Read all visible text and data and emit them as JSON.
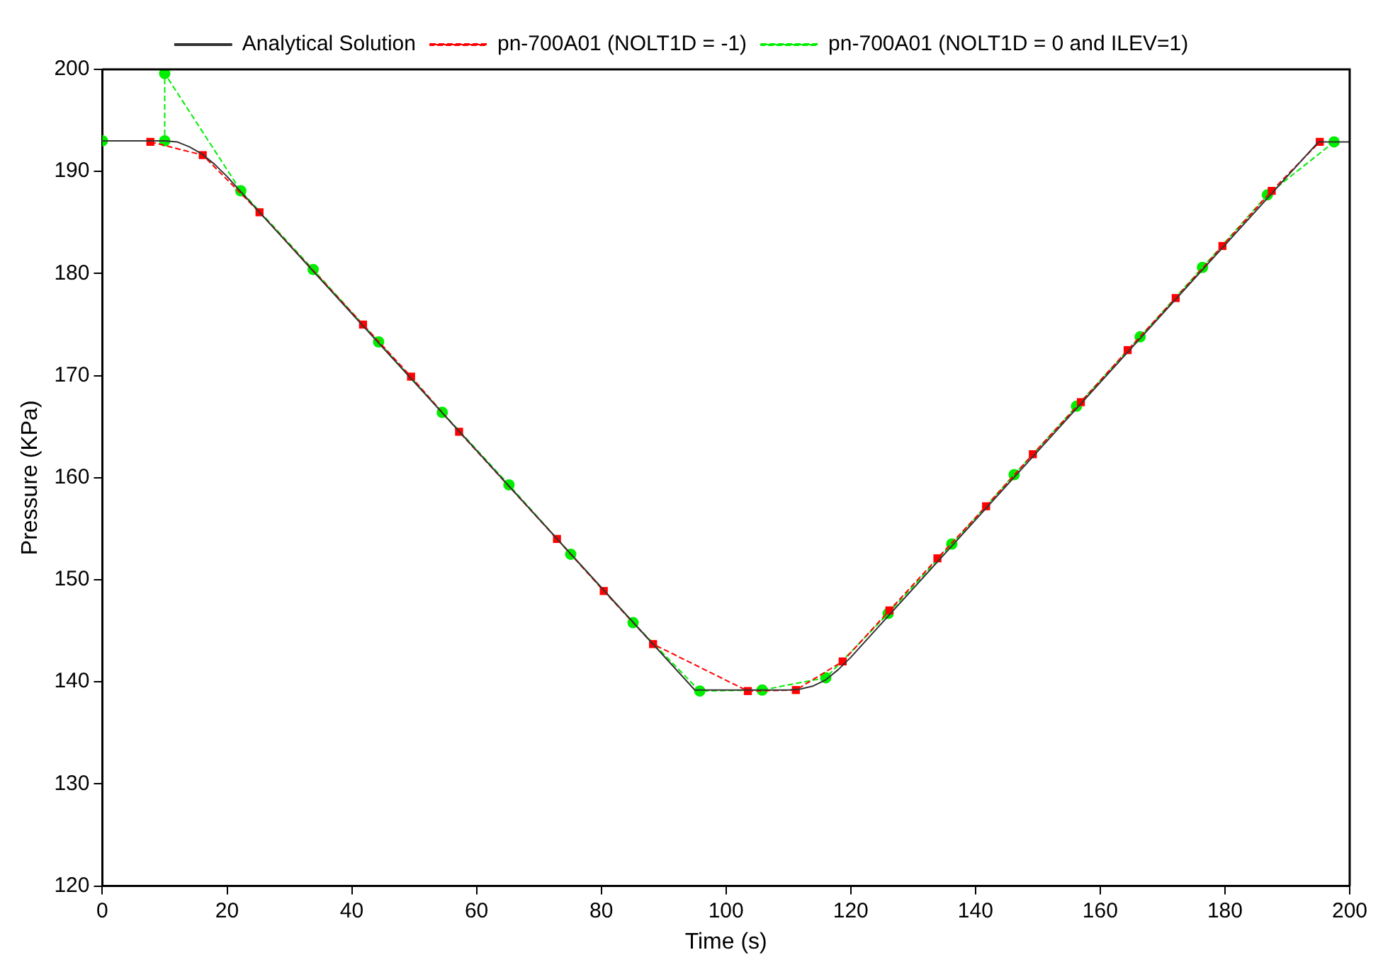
{
  "chart_data": {
    "type": "line",
    "xlabel": "Time (s)",
    "ylabel": "Pressure (KPa)",
    "xlim": [
      0,
      200
    ],
    "ylim": [
      120,
      200
    ],
    "xticks": [
      0,
      20,
      40,
      60,
      80,
      100,
      120,
      140,
      160,
      180,
      200
    ],
    "yticks": [
      120,
      130,
      140,
      150,
      160,
      170,
      180,
      190,
      200
    ],
    "grid": false,
    "legend": "top",
    "series": [
      {
        "name": "Analytical Solution",
        "color": "#333333",
        "marker": "none",
        "line_style": "solid",
        "x": [
          0,
          10,
          12,
          14,
          16,
          18,
          20,
          25.2,
          95,
          110,
          112,
          114,
          116,
          118,
          120,
          195,
          200
        ],
        "values": [
          193,
          193,
          192.9,
          192.4,
          191.7,
          190.7,
          189.5,
          186.0,
          139.2,
          139.2,
          139.3,
          139.6,
          140.2,
          141.2,
          142.4,
          192.9,
          192.9
        ]
      },
      {
        "name": "pn-700A01 (NOLT1D = -1)",
        "color": "#ff0000",
        "marker": "square",
        "line_style": "dashed",
        "x": [
          7.7,
          16.1,
          25.2,
          41.8,
          49.5,
          57.2,
          72.9,
          80.4,
          88.3,
          103.5,
          111.2,
          118.7,
          126.2,
          133.9,
          141.7,
          149.2,
          156.9,
          164.4,
          172.1,
          179.6,
          187.5,
          195.2
        ],
        "values": [
          192.9,
          191.6,
          186.0,
          175.0,
          169.9,
          164.5,
          154.0,
          148.9,
          143.7,
          139.1,
          139.2,
          142.0,
          147.0,
          152.1,
          157.2,
          162.3,
          167.4,
          172.5,
          177.6,
          182.7,
          188.1,
          192.9
        ]
      },
      {
        "name": "pn-700A01 (NOLT1D = 0 and ILEV=1)",
        "color": "#00ee00",
        "marker": "circle",
        "line_style": "dashed",
        "x": [
          0,
          10,
          10,
          22.2,
          33.8,
          44.3,
          54.5,
          65.2,
          75.1,
          85.1,
          95.8,
          105.8,
          116.0,
          126.0,
          136.2,
          146.2,
          156.2,
          166.4,
          176.4,
          186.8,
          197.5
        ],
        "values": [
          193,
          193,
          199.6,
          188.1,
          180.4,
          173.3,
          166.4,
          159.3,
          152.5,
          145.8,
          139.1,
          139.2,
          140.4,
          146.7,
          153.5,
          160.3,
          167.0,
          173.8,
          180.6,
          187.7,
          192.9
        ]
      }
    ]
  }
}
